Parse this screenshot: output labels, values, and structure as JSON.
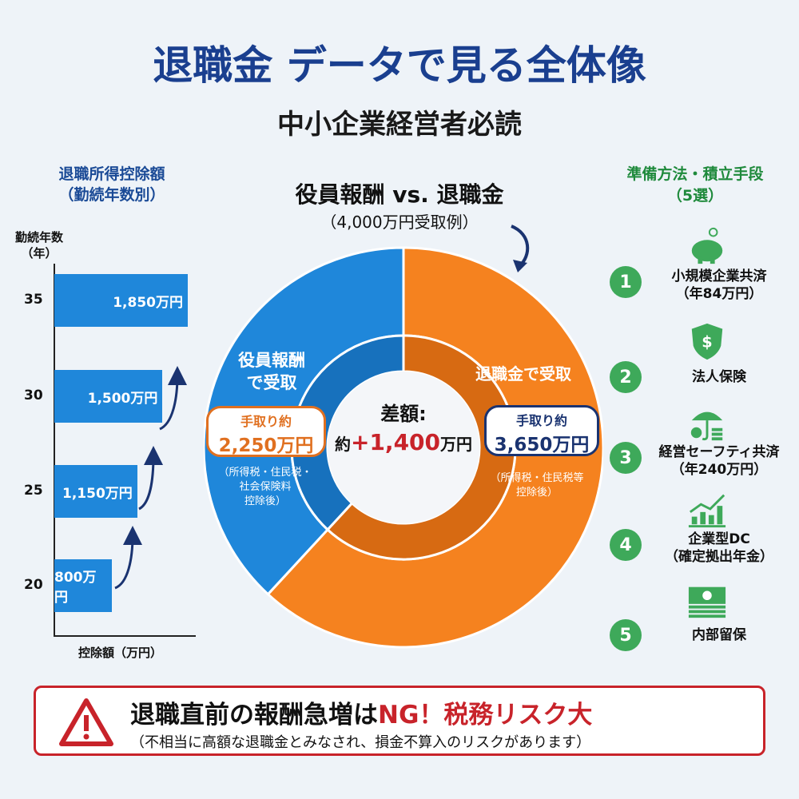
{
  "header": {
    "title": "退職金 データで見る全体像",
    "subtitle": "中小企業経営者必読"
  },
  "left_panel": {
    "title_line1": "退職所得控除額",
    "title_line2": "（勤続年数別）",
    "y_label_line1": "勤続年数",
    "y_label_line2": "（年）",
    "x_label": "控除額（万円）"
  },
  "center_panel": {
    "title": "役員報酬 vs. 退職金",
    "subtitle": "（4,000万円受取例）",
    "blue_label_line1": "役員報酬",
    "blue_label_line2": "で受取",
    "blue_callout_line1": "手取り約",
    "blue_callout_line2": "2,250万円",
    "blue_note_line1": "（所得税・住民税・",
    "blue_note_line2": "社会保険料",
    "blue_note_line3": "控除後）",
    "orange_label": "退職金で受取",
    "orange_callout_line1": "手取り約",
    "orange_callout_line2": "3,650万円",
    "orange_note_line1": "（所得税・住民税等",
    "orange_note_line2": "控除後）",
    "center_label": "差額:",
    "center_prefix": "約",
    "center_value": "+1,400",
    "center_unit": "万円"
  },
  "right_panel": {
    "title_line1": "準備方法・積立手段",
    "title_line2": "（5選）",
    "items": [
      {
        "number": "1",
        "line1": "小規模企業共済",
        "line2": "（年84万円）",
        "icon": "piggy-bank-icon"
      },
      {
        "number": "2",
        "line1": "法人保険",
        "line2": "",
        "icon": "shield-dollar-icon"
      },
      {
        "number": "3",
        "line1": "経営セーフティ共済",
        "line2": "（年240万円）",
        "icon": "umbrella-coins-icon"
      },
      {
        "number": "4",
        "line1": "企業型DC",
        "line2": "（確定拠出年金）",
        "icon": "growth-chart-icon"
      },
      {
        "number": "5",
        "line1": "内部留保",
        "line2": "",
        "icon": "cash-stack-icon"
      }
    ]
  },
  "warning": {
    "main_prefix": "退職直前の報酬急増は",
    "main_ng": "NG！税務リスク大",
    "note": "（不相当に高額な退職金とみなされ、損金不算入のリスクがあります）",
    "icon": "warning-triangle-icon"
  },
  "colors": {
    "title": "#1a3f8f",
    "blue": "#1f87da",
    "orange": "#f5821f",
    "green": "#3ea95a",
    "red": "#c8232a",
    "navy": "#1a3370"
  },
  "chart_data": [
    {
      "type": "bar",
      "orientation": "horizontal",
      "title": "退職所得控除額（勤続年数別）",
      "ylabel": "勤続年数（年）",
      "xlabel": "控除額（万円）",
      "categories": [
        "35",
        "30",
        "25",
        "20"
      ],
      "values": [
        1850,
        1500,
        1150,
        800
      ],
      "data_labels": [
        "1,850万円",
        "1,500万円",
        "1,150万円",
        "800万円"
      ]
    },
    {
      "type": "pie",
      "variant": "donut",
      "title": "役員報酬 vs. 退職金",
      "subtitle": "（4,000万円受取例）",
      "categories": [
        "退職金で受取",
        "役員報酬で受取"
      ],
      "values": [
        3650,
        2250
      ]
    }
  ]
}
